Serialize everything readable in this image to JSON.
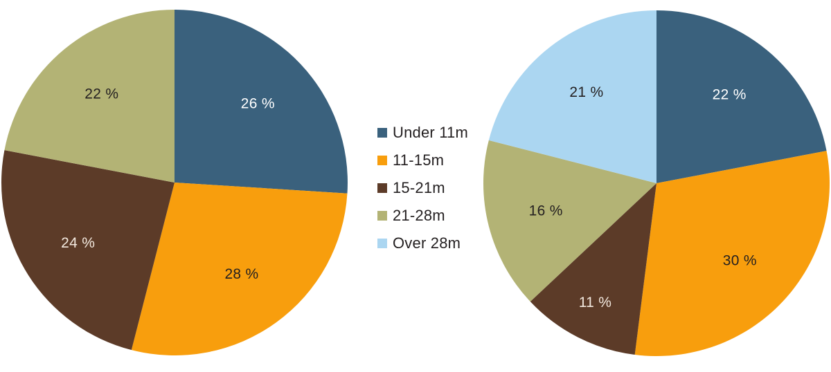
{
  "page": {
    "background": "#FFFFFF",
    "text_color": "#231F20"
  },
  "colors": {
    "under_11m": "#3A617D",
    "range_11_15m": "#F89E0D",
    "range_15_21m": "#5C3B28",
    "range_21_28m": "#B3B375",
    "over_28m": "#ABD6F1",
    "dark_label": "#231F20",
    "white_label": "#FFFFFF",
    "cream_label": "#F3E9DF"
  },
  "legend": {
    "position": "center-between-pies",
    "items": [
      {
        "label": "Under 11m",
        "color": "#3A617D"
      },
      {
        "label": "11-15m",
        "color": "#F89E0D"
      },
      {
        "label": "15-21m",
        "color": "#5C3B28"
      },
      {
        "label": "21-28m",
        "color": "#B3B375"
      },
      {
        "label": "Over 28m",
        "color": "#ABD6F1"
      }
    ]
  },
  "chart_data": [
    {
      "type": "pie",
      "name": "left-pie",
      "title": "",
      "start_angle_deg": 0,
      "direction": "clockwise",
      "unit": "%",
      "categories": [
        "Under 11m",
        "11-15m",
        "15-21m",
        "21-28m"
      ],
      "values": [
        26,
        28,
        24,
        22
      ],
      "slices": [
        {
          "category": "Under 11m",
          "value": 26,
          "label": "26 %",
          "color": "#3A617D",
          "label_color": "#FFFFFF"
        },
        {
          "category": "11-15m",
          "value": 28,
          "label": "28 %",
          "color": "#F89E0D",
          "label_color": "#231F20"
        },
        {
          "category": "15-21m",
          "value": 24,
          "label": "24 %",
          "color": "#5C3B28",
          "label_color": "#F3E9DF"
        },
        {
          "category": "21-28m",
          "value": 22,
          "label": "22 %",
          "color": "#B3B375",
          "label_color": "#231F20"
        }
      ]
    },
    {
      "type": "pie",
      "name": "right-pie",
      "title": "",
      "start_angle_deg": 0,
      "direction": "clockwise",
      "unit": "%",
      "categories": [
        "Under 11m",
        "11-15m",
        "15-21m",
        "21-28m",
        "Over 28m"
      ],
      "values": [
        22,
        30,
        11,
        16,
        21
      ],
      "slices": [
        {
          "category": "Under 11m",
          "value": 22,
          "label": "22 %",
          "color": "#3A617D",
          "label_color": "#FFFFFF"
        },
        {
          "category": "11-15m",
          "value": 30,
          "label": "30 %",
          "color": "#F89E0D",
          "label_color": "#231F20"
        },
        {
          "category": "15-21m",
          "value": 11,
          "label": "11 %",
          "color": "#5C3B28",
          "label_color": "#F3E9DF"
        },
        {
          "category": "21-28m",
          "value": 16,
          "label": "16 %",
          "color": "#B3B375",
          "label_color": "#231F20"
        },
        {
          "category": "Over 28m",
          "value": 21,
          "label": "21 %",
          "color": "#ABD6F1",
          "label_color": "#231F20"
        }
      ]
    }
  ]
}
